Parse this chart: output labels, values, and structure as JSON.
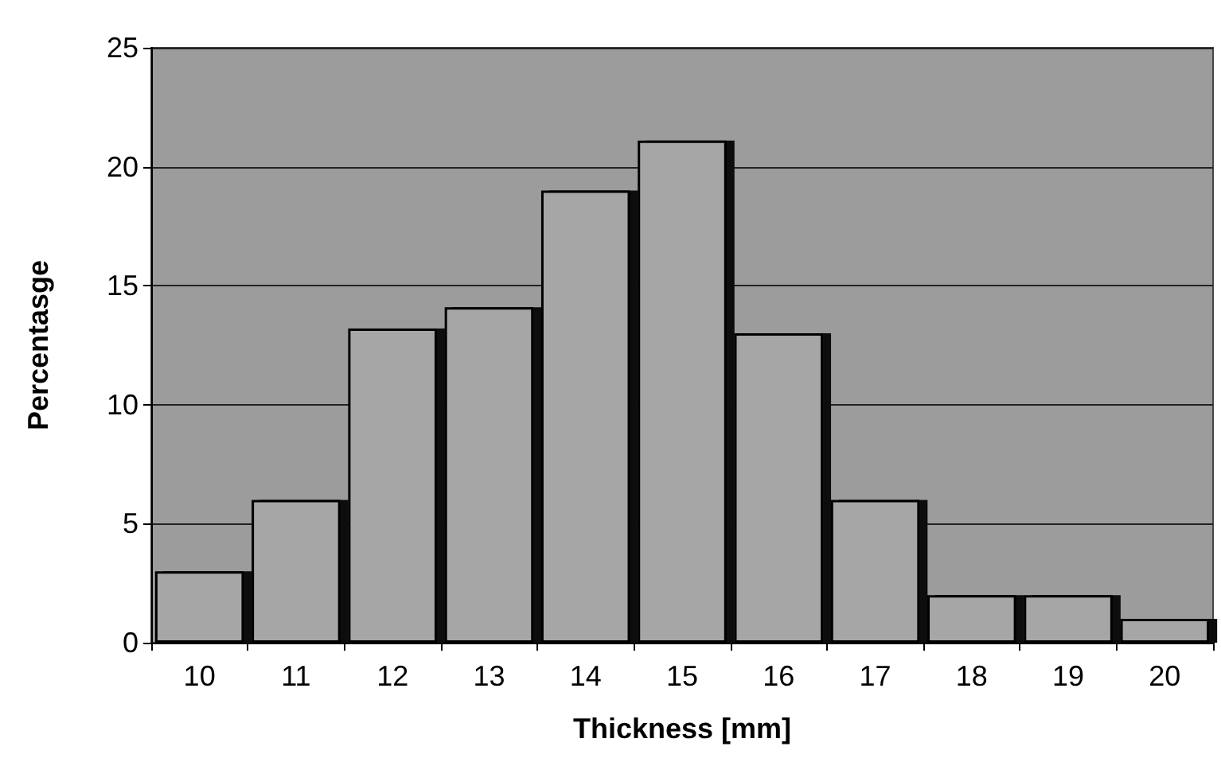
{
  "chart_data": {
    "type": "bar",
    "xlabel": "Thickness [mm]",
    "ylabel": "Percentasge",
    "categories": [
      "10",
      "11",
      "12",
      "13",
      "14",
      "15",
      "16",
      "17",
      "18",
      "19",
      "20"
    ],
    "values": [
      3,
      6,
      13.2,
      14.1,
      19,
      21.1,
      13,
      6,
      2,
      2,
      1
    ],
    "color": "#a6a6a6",
    "ylim": [
      0,
      25
    ],
    "yticks": [
      0,
      5,
      10,
      15,
      20,
      25
    ],
    "grid": "y"
  }
}
